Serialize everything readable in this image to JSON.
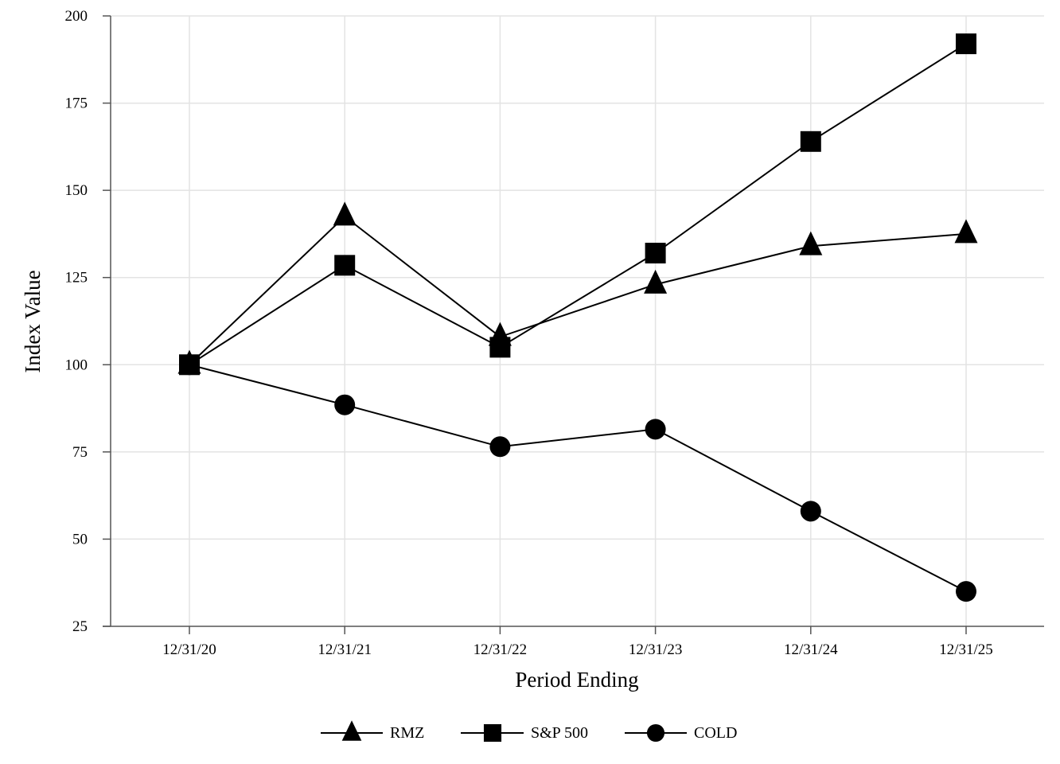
{
  "chart_data": {
    "type": "line",
    "title": "",
    "xlabel": "Period Ending",
    "ylabel": "Index Value",
    "categories": [
      "12/31/20",
      "12/31/21",
      "12/31/22",
      "12/31/23",
      "12/31/24",
      "12/31/25"
    ],
    "ylim": [
      25,
      200
    ],
    "yticks": [
      25,
      50,
      75,
      100,
      125,
      150,
      175,
      200
    ],
    "grid": true,
    "legend_position": "bottom",
    "series": [
      {
        "name": "RMZ",
        "marker": "triangle",
        "color": "#000000",
        "values": [
          100,
          142.5,
          108,
          123,
          134,
          137.5
        ]
      },
      {
        "name": "S&P 500",
        "marker": "square",
        "color": "#000000",
        "values": [
          100,
          128.5,
          105,
          132,
          164,
          192
        ]
      },
      {
        "name": "COLD",
        "marker": "circle",
        "color": "#000000",
        "values": [
          100,
          88.5,
          76.5,
          81.5,
          58,
          35
        ]
      }
    ]
  }
}
